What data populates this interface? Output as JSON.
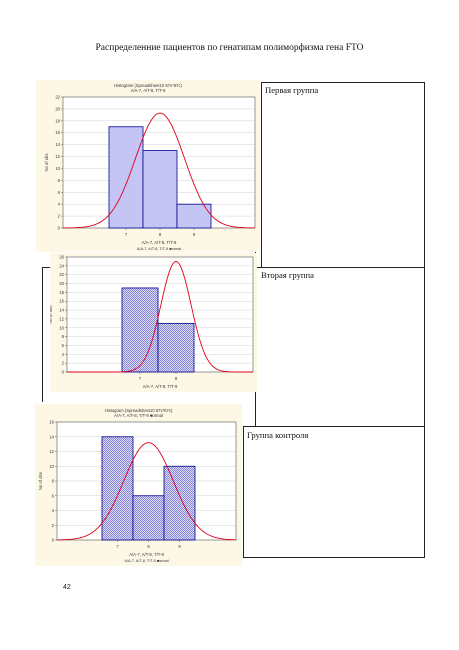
{
  "page_title": "Распределенние пациентов по генатипам полиморфизма гена FTO",
  "groups": [
    {
      "label": "Первая группа"
    },
    {
      "label": "Вторая группа"
    },
    {
      "label": "Группа контроля"
    }
  ],
  "page_number": "42",
  "colors": {
    "bar_fill": "#c4c4f5",
    "bar_stroke": "#00008b",
    "curve": "#e0001b",
    "panel_bg": "#fdf7e6"
  },
  "chart_data": [
    {
      "type": "bar",
      "title": "Histogram (Spreadsheet10 67v*67c)",
      "subtitle": "A/A-7, A/T-8, T/T-9",
      "xlabel": "A/A-7, A/T-8, T/T-9",
      "legend": "A/A-7, A/T-8, T/T-9 ■ormal",
      "ylabel": "No of obs",
      "categories": [
        "7",
        "8",
        "9"
      ],
      "values": [
        17,
        13,
        4
      ],
      "ylim": [
        0,
        22
      ],
      "yticks": [
        0,
        2,
        4,
        6,
        8,
        10,
        12,
        14,
        16,
        18,
        20,
        22
      ],
      "pattern": "solid",
      "curve_peak": 19.3,
      "curve_center_bar": 1,
      "curve_sigma_bars": 0.72,
      "grid": true
    },
    {
      "type": "bar",
      "title": "",
      "subtitle": "",
      "xlabel": "A/A-7, A/T-8, T/T-9",
      "legend": "",
      "ylabel": "No of obs",
      "categories": [
        "7",
        "8"
      ],
      "values": [
        19,
        11
      ],
      "ylim": [
        0,
        26
      ],
      "yticks": [
        0,
        2,
        4,
        6,
        8,
        10,
        12,
        14,
        16,
        18,
        20,
        22,
        24,
        26
      ],
      "pattern": "hatched",
      "curve_peak": 25,
      "curve_center_bar": 1,
      "curve_sigma_bars": 0.42,
      "grid": true
    },
    {
      "type": "bar",
      "title": "Histogram (Spreadsheet10 67v*67c)",
      "subtitle": "A/A-7, A/T-8, T/T-9",
      "xlabel": "A/A-7, A/T-8, T/T-9",
      "legend": "A/A-7, A/T-8, T/T-9 ■ormal",
      "ylabel": "No of obs",
      "categories": [
        "7",
        "8",
        "9"
      ],
      "values": [
        14,
        6,
        10
      ],
      "ylim": [
        0,
        16
      ],
      "yticks": [
        0,
        2,
        4,
        6,
        8,
        10,
        12,
        14,
        16
      ],
      "pattern": "hatched",
      "curve_peak": 13.2,
      "curve_center_bar": 1.5,
      "curve_sigma_bars": 0.8,
      "grid": true
    }
  ]
}
